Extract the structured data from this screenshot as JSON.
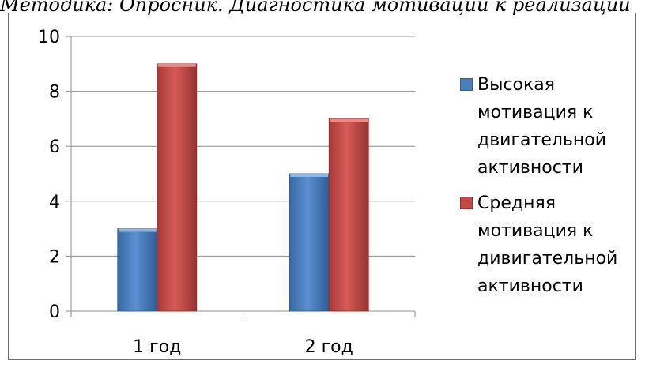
{
  "caption": "Методика: Опросник. Диагностика мотивации к реализации",
  "chart_data": {
    "type": "bar",
    "categories": [
      "1 год",
      "2 год"
    ],
    "series": [
      {
        "name": "Высокая мотивация к двигательной активности",
        "values": [
          3,
          5
        ],
        "color": "#4a7ebb"
      },
      {
        "name": "Средняя мотивация к дивигательной активности",
        "values": [
          9,
          7
        ],
        "color": "#be4b48"
      }
    ],
    "ylim": [
      0,
      10
    ],
    "yticks": [
      0,
      2,
      4,
      6,
      8,
      10
    ],
    "grid": true,
    "legend_position": "right",
    "title": "",
    "xlabel": "",
    "ylabel": ""
  }
}
